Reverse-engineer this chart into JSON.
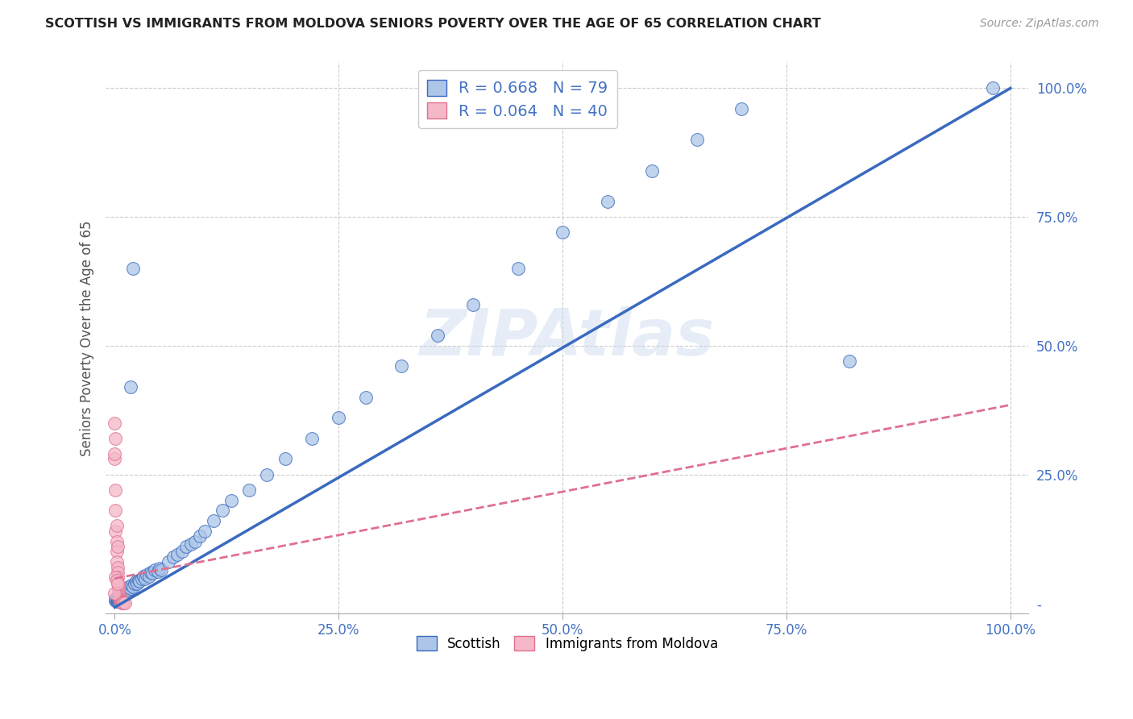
{
  "title": "SCOTTISH VS IMMIGRANTS FROM MOLDOVA SENIORS POVERTY OVER THE AGE OF 65 CORRELATION CHART",
  "source": "Source: ZipAtlas.com",
  "ylabel": "Seniors Poverty Over the Age of 65",
  "watermark": "ZIPAtlas",
  "blue_R": 0.668,
  "blue_N": 79,
  "pink_R": 0.064,
  "pink_N": 40,
  "blue_color": "#adc6e8",
  "pink_color": "#f4b8c8",
  "trend_blue": "#3a6abf",
  "trend_pink": "#e07090",
  "title_color": "#222222",
  "source_color": "#999999",
  "axis_label_color": "#4472c4",
  "grid_color": "#cccccc",
  "background_color": "#ffffff",
  "blue_scatter": [
    [
      0.001,
      0.005
    ],
    [
      0.001,
      0.008
    ],
    [
      0.002,
      0.003
    ],
    [
      0.002,
      0.006
    ],
    [
      0.002,
      0.01
    ],
    [
      0.003,
      0.004
    ],
    [
      0.003,
      0.007
    ],
    [
      0.003,
      0.012
    ],
    [
      0.004,
      0.005
    ],
    [
      0.004,
      0.009
    ],
    [
      0.004,
      0.015
    ],
    [
      0.005,
      0.006
    ],
    [
      0.005,
      0.01
    ],
    [
      0.005,
      0.018
    ],
    [
      0.006,
      0.008
    ],
    [
      0.006,
      0.013
    ],
    [
      0.006,
      0.02
    ],
    [
      0.007,
      0.009
    ],
    [
      0.007,
      0.015
    ],
    [
      0.008,
      0.011
    ],
    [
      0.008,
      0.018
    ],
    [
      0.009,
      0.013
    ],
    [
      0.009,
      0.02
    ],
    [
      0.01,
      0.015
    ],
    [
      0.01,
      0.022
    ],
    [
      0.011,
      0.018
    ],
    [
      0.012,
      0.024
    ],
    [
      0.013,
      0.021
    ],
    [
      0.014,
      0.028
    ],
    [
      0.015,
      0.025
    ],
    [
      0.016,
      0.032
    ],
    [
      0.018,
      0.028
    ],
    [
      0.019,
      0.035
    ],
    [
      0.02,
      0.032
    ],
    [
      0.022,
      0.038
    ],
    [
      0.024,
      0.042
    ],
    [
      0.025,
      0.038
    ],
    [
      0.027,
      0.045
    ],
    [
      0.028,
      0.042
    ],
    [
      0.03,
      0.048
    ],
    [
      0.032,
      0.052
    ],
    [
      0.034,
      0.048
    ],
    [
      0.036,
      0.055
    ],
    [
      0.038,
      0.052
    ],
    [
      0.04,
      0.06
    ],
    [
      0.042,
      0.058
    ],
    [
      0.045,
      0.065
    ],
    [
      0.048,
      0.062
    ],
    [
      0.05,
      0.068
    ],
    [
      0.052,
      0.065
    ],
    [
      0.018,
      0.42
    ],
    [
      0.02,
      0.65
    ],
    [
      0.06,
      0.08
    ],
    [
      0.065,
      0.09
    ],
    [
      0.07,
      0.095
    ],
    [
      0.075,
      0.1
    ],
    [
      0.08,
      0.11
    ],
    [
      0.085,
      0.115
    ],
    [
      0.09,
      0.12
    ],
    [
      0.095,
      0.13
    ],
    [
      0.1,
      0.14
    ],
    [
      0.11,
      0.16
    ],
    [
      0.12,
      0.18
    ],
    [
      0.13,
      0.2
    ],
    [
      0.15,
      0.22
    ],
    [
      0.17,
      0.25
    ],
    [
      0.19,
      0.28
    ],
    [
      0.22,
      0.32
    ],
    [
      0.25,
      0.36
    ],
    [
      0.28,
      0.4
    ],
    [
      0.32,
      0.46
    ],
    [
      0.36,
      0.52
    ],
    [
      0.4,
      0.58
    ],
    [
      0.45,
      0.65
    ],
    [
      0.5,
      0.72
    ],
    [
      0.55,
      0.78
    ],
    [
      0.6,
      0.84
    ],
    [
      0.65,
      0.9
    ],
    [
      0.7,
      0.96
    ],
    [
      0.98,
      1.0
    ],
    [
      0.82,
      0.47
    ]
  ],
  "pink_scatter": [
    [
      0.0,
      0.35
    ],
    [
      0.0,
      0.28
    ],
    [
      0.001,
      0.22
    ],
    [
      0.001,
      0.18
    ],
    [
      0.001,
      0.14
    ],
    [
      0.002,
      0.12
    ],
    [
      0.002,
      0.1
    ],
    [
      0.002,
      0.08
    ],
    [
      0.003,
      0.07
    ],
    [
      0.003,
      0.06
    ],
    [
      0.003,
      0.05
    ],
    [
      0.003,
      0.04
    ],
    [
      0.004,
      0.035
    ],
    [
      0.004,
      0.03
    ],
    [
      0.004,
      0.025
    ],
    [
      0.004,
      0.02
    ],
    [
      0.005,
      0.018
    ],
    [
      0.005,
      0.015
    ],
    [
      0.005,
      0.013
    ],
    [
      0.005,
      0.01
    ],
    [
      0.006,
      0.009
    ],
    [
      0.006,
      0.007
    ],
    [
      0.006,
      0.005
    ],
    [
      0.007,
      0.004
    ],
    [
      0.007,
      0.003
    ],
    [
      0.007,
      0.002
    ],
    [
      0.008,
      0.002
    ],
    [
      0.008,
      0.001
    ],
    [
      0.009,
      0.001
    ],
    [
      0.009,
      0.0
    ],
    [
      0.01,
      0.0
    ],
    [
      0.011,
      0.0
    ],
    [
      0.0,
      0.29
    ],
    [
      0.001,
      0.32
    ],
    [
      0.002,
      0.15
    ],
    [
      0.003,
      0.11
    ],
    [
      0.0,
      0.02
    ],
    [
      0.001,
      0.05
    ],
    [
      0.002,
      0.045
    ],
    [
      0.003,
      0.038
    ]
  ],
  "xlim": [
    -0.01,
    1.02
  ],
  "ylim": [
    -0.02,
    1.05
  ],
  "xticks": [
    0.0,
    0.25,
    0.5,
    0.75,
    1.0
  ],
  "yticks": [
    0.0,
    0.25,
    0.5,
    0.75,
    1.0
  ],
  "xticklabels": [
    "0.0%",
    "25.0%",
    "50.0%",
    "75.0%",
    "100.0%"
  ],
  "yticklabels": [
    "-",
    "25.0%",
    "50.0%",
    "75.0%",
    "100.0%"
  ],
  "blue_trend_x": [
    0.0,
    1.0
  ],
  "blue_trend_y": [
    -0.008,
    1.0
  ],
  "pink_trend_x": [
    0.0,
    1.0
  ],
  "pink_trend_y": [
    0.048,
    0.385
  ]
}
